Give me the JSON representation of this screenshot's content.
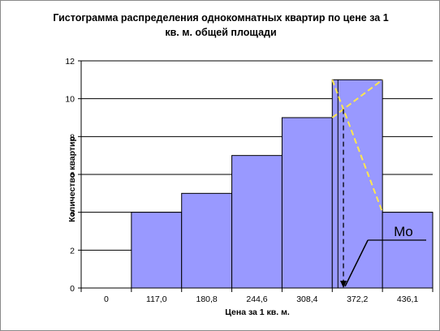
{
  "chart_data": {
    "type": "bar",
    "title_lines": [
      "Гистограмма распределения однокомнатных квартир по цене за 1",
      "кв. м. общей площади"
    ],
    "xlabel": "Цена за 1 кв. м.",
    "ylabel": "Количество квартир",
    "x_ticks": [
      "0",
      "117,0",
      "180,8",
      "244,6",
      "308,4",
      "372,2",
      "436,1"
    ],
    "y_ticks": [
      "0",
      "2",
      "4",
      "6",
      "8",
      "10",
      "12"
    ],
    "ylim": [
      0,
      12
    ],
    "bins": [
      {
        "from": "117,0",
        "to": "180,8",
        "value": 4
      },
      {
        "from": "180,8",
        "to": "244,6",
        "value": 5
      },
      {
        "from": "244,6",
        "to": "308,4",
        "value": 7
      },
      {
        "from": "308,4",
        "to": "372,2",
        "value": 9
      },
      {
        "from": "372,2",
        "to": "436,1",
        "value": 11
      },
      {
        "from": "436,1",
        "to": "",
        "value": 4
      }
    ],
    "annotation": "Mo",
    "colors": {
      "bar_fill": "#9999ff",
      "bar_stroke": "#000000",
      "construction": "#ffe74d",
      "grid": "#000000"
    },
    "grid": true,
    "legend": "none"
  }
}
